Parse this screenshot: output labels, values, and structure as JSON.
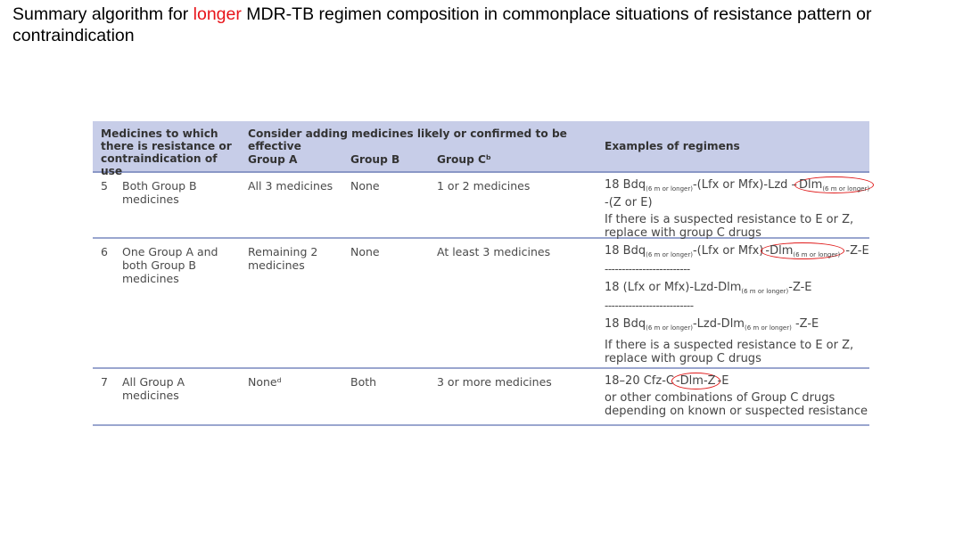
{
  "title": {
    "pre": "Summary algorithm for ",
    "highlight": "longer",
    "post": " MDR-TB regimen composition in commonplace situations of resistance pattern or contraindication",
    "highlight_color": "#e8141a"
  },
  "table": {
    "headers": {
      "col1": "Medicines to which there is resistance or contraindication of use",
      "span": "Consider adding medicines likely or confirmed to be effective",
      "groupA": "Group A",
      "groupB": "Group B",
      "groupC": "Group Cᵇ",
      "examples": "Examples of regimens"
    },
    "rows": [
      {
        "num": "5",
        "resistance": "Both Group B medicines",
        "groupA": "All 3 medicines",
        "groupB": "None",
        "groupC": "1 or 2 medicines",
        "examples": [
          {
            "type": "line",
            "parts": [
              {
                "t": "18 Bdq"
              },
              {
                "sub": "(6 m or longer)"
              },
              {
                "t": "-(Lfx or Mfx)-Lzd –"
              },
              {
                "t": "Dlm",
                "sub2": "(6 m or longer)",
                "circle": true
              },
              {
                "t": " -(Z or E)"
              }
            ]
          },
          {
            "type": "note",
            "text": "If there is a suspected resistance to E or Z, replace with group C drugs"
          }
        ]
      },
      {
        "num": "6",
        "resistance": "One Group A and both Group B medicines",
        "groupA": "Remaining 2 medicines",
        "groupB": "None",
        "groupC": "At least 3 medicines",
        "examples": [
          {
            "type": "line",
            "parts": [
              {
                "t": "18 Bdq"
              },
              {
                "sub": "(6 m or longer)"
              },
              {
                "t": "-(Lfx or Mfx)"
              },
              {
                "t": "-Dlm",
                "sub2": "(6 m or longer)",
                "circle": true
              },
              {
                "t": " -Z-E"
              }
            ]
          },
          {
            "type": "sep",
            "text": "-------------------------"
          },
          {
            "type": "line",
            "parts": [
              {
                "t": "18 (Lfx or Mfx)-Lzd-Dlm"
              },
              {
                "sub": "(6 m or longer)"
              },
              {
                "t": "-Z-E"
              }
            ]
          },
          {
            "type": "sep",
            "text": "--------------------------"
          },
          {
            "type": "line",
            "parts": [
              {
                "t": "18 Bdq"
              },
              {
                "sub": "(6 m or longer)"
              },
              {
                "t": "-Lzd-Dlm"
              },
              {
                "sub": "(6 m or longer)"
              },
              {
                "t": " -Z-E"
              }
            ]
          },
          {
            "type": "note",
            "text": "If there is a suspected resistance to E or Z, replace with group C drugs"
          }
        ]
      },
      {
        "num": "7",
        "resistance": "All Group A medicines",
        "groupA": "Noneᵈ",
        "groupB": "Both",
        "groupC": "3 or more medicines",
        "examples": [
          {
            "type": "line",
            "parts": [
              {
                "t": "18–20 Cfz-C"
              },
              {
                "t": "-Dlm-Z",
                "circle": true
              },
              {
                "t": "-E"
              }
            ]
          },
          {
            "type": "note",
            "text": "or other combinations of Group C drugs depending on known or suspected resistance"
          }
        ]
      }
    ]
  }
}
